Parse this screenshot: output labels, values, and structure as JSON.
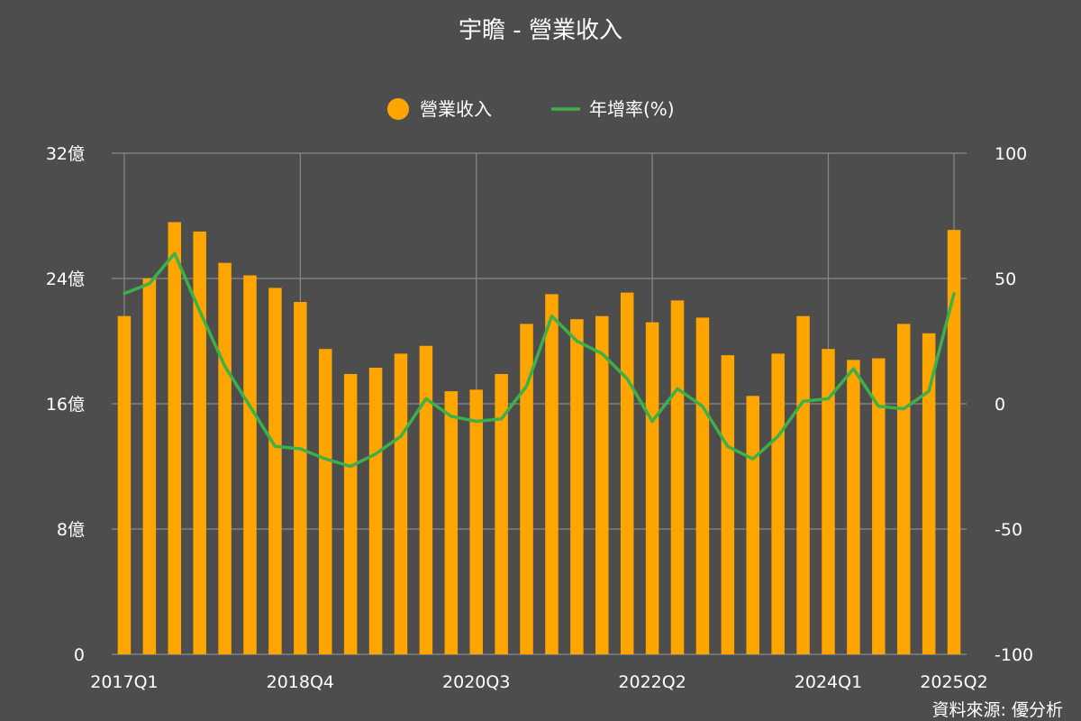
{
  "chart_data": {
    "type": "bar",
    "title": "宇瞻 - 營業收入",
    "source": "資料來源: 優分析",
    "legend_position": "top-center",
    "grid": true,
    "colors": {
      "background": "#4d4d4d",
      "bar": "#ffa500",
      "line": "#3cb14a",
      "grid": "#8a8a8a"
    },
    "y_left": {
      "ylim": [
        0,
        32
      ],
      "ticks": [
        0,
        8,
        16,
        24,
        32
      ],
      "tick_labels": [
        "0",
        "8億",
        "16億",
        "24億",
        "32億"
      ]
    },
    "y_right": {
      "ylim": [
        -100,
        100
      ],
      "ticks": [
        -100,
        -50,
        0,
        50,
        100
      ],
      "tick_labels": [
        "-100",
        "-50",
        "0",
        "50",
        "100"
      ]
    },
    "x_tick_labels": [
      {
        "index": 0,
        "label": "2017Q1"
      },
      {
        "index": 7,
        "label": "2018Q4"
      },
      {
        "index": 14,
        "label": "2020Q3"
      },
      {
        "index": 21,
        "label": "2022Q2"
      },
      {
        "index": 28,
        "label": "2024Q1"
      },
      {
        "index": 33,
        "label": "2025Q2"
      }
    ],
    "categories": [
      "2017Q1",
      "2017Q2",
      "2017Q3",
      "2017Q4",
      "2018Q1",
      "2018Q2",
      "2018Q3",
      "2018Q4",
      "2019Q1",
      "2019Q2",
      "2019Q3",
      "2019Q4",
      "2020Q1",
      "2020Q2",
      "2020Q3",
      "2020Q4",
      "2021Q1",
      "2021Q2",
      "2021Q3",
      "2021Q4",
      "2022Q1",
      "2022Q2",
      "2022Q3",
      "2022Q4",
      "2023Q1",
      "2023Q2",
      "2023Q3",
      "2023Q4",
      "2024Q1",
      "2024Q2",
      "2024Q3",
      "2024Q4",
      "2025Q1",
      "2025Q2"
    ],
    "series": [
      {
        "name": "營業收入",
        "type": "bar",
        "axis": "left",
        "values": [
          21.6,
          24.0,
          27.6,
          27.0,
          25.0,
          24.2,
          23.4,
          22.5,
          19.5,
          17.9,
          18.3,
          19.2,
          19.7,
          16.8,
          16.9,
          17.9,
          21.1,
          23.0,
          21.4,
          21.6,
          23.1,
          21.2,
          22.6,
          21.5,
          19.1,
          16.5,
          19.2,
          21.6,
          19.5,
          18.8,
          18.9,
          21.1,
          20.5,
          27.1
        ]
      },
      {
        "name": "年增率(%)",
        "type": "line",
        "axis": "right",
        "values": [
          44,
          48,
          60,
          37,
          15,
          -1,
          -17,
          -18,
          -22,
          -25,
          -20,
          -13,
          2,
          -5,
          -7,
          -6,
          7,
          35,
          25,
          20,
          10,
          -7,
          6,
          -1,
          -17,
          -22,
          -13,
          1,
          2,
          14,
          -1,
          -2,
          5,
          44
        ]
      }
    ]
  }
}
